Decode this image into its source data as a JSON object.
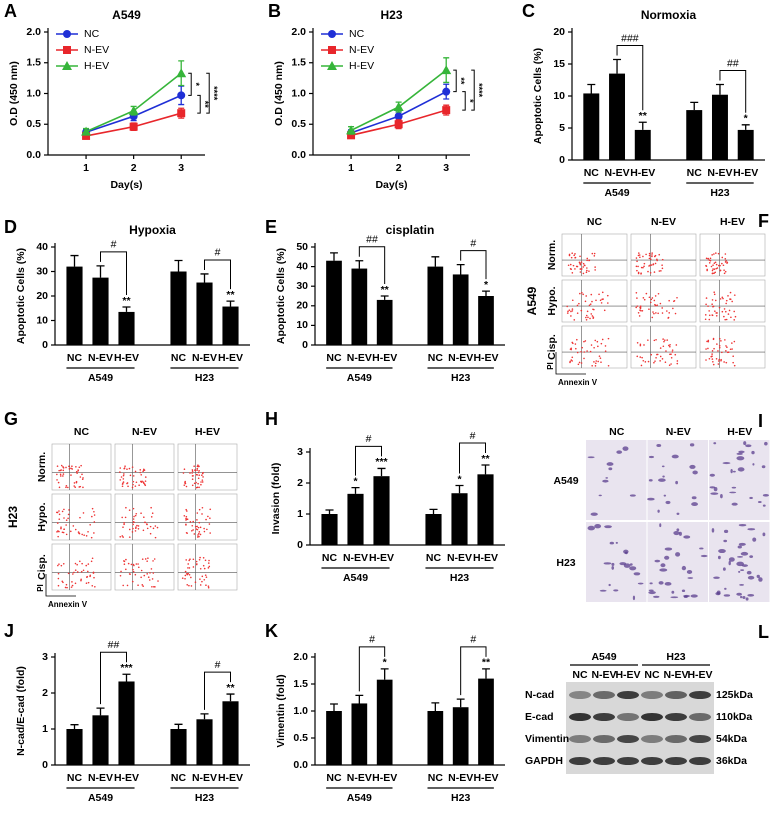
{
  "chart_data": [
    {
      "type": "line",
      "panel": "A",
      "title": "A549",
      "x_label": "Day(s)",
      "y_label": "O.D (450 nm)",
      "x": [
        1,
        2,
        3
      ],
      "xlim": [
        0.2,
        3.5
      ],
      "xticks": [
        1,
        2,
        3
      ],
      "ylim": [
        0,
        2
      ],
      "yticks": [
        {
          "value": 0,
          "label": "0.0"
        },
        0.5,
        {
          "value": 1,
          "label": "1.0"
        },
        1.5,
        {
          "value": 2,
          "label": "2.0"
        }
      ],
      "series": [
        {
          "name": "NC",
          "color": "#1f2fd6",
          "values": [
            0.37,
            0.63,
            0.97
          ],
          "errors": [
            0.05,
            0.07,
            0.15
          ]
        },
        {
          "name": "N-EV",
          "color": "#e8262b",
          "values": [
            0.31,
            0.46,
            0.68
          ],
          "errors": [
            0.04,
            0.06,
            0.08
          ]
        },
        {
          "name": "H-EV",
          "color": "#36b53a",
          "values": [
            0.38,
            0.72,
            1.33
          ],
          "errors": [
            0.05,
            0.07,
            0.2
          ]
        }
      ],
      "comparison_labels": [
        "*",
        "**",
        "****"
      ]
    },
    {
      "type": "line",
      "panel": "B",
      "title": "H23",
      "x_label": "Day(s)",
      "y_label": "O.D (450 nm)",
      "x": [
        1,
        2,
        3
      ],
      "xlim": [
        0.2,
        3.5
      ],
      "xticks": [
        1,
        2,
        3
      ],
      "ylim": [
        0,
        2
      ],
      "yticks": [
        {
          "value": 0,
          "label": "0.0"
        },
        0.5,
        {
          "value": 1,
          "label": "1.0"
        },
        1.5,
        {
          "value": 2,
          "label": "2.0"
        }
      ],
      "series": [
        {
          "name": "NC",
          "color": "#1f2fd6",
          "values": [
            0.36,
            0.63,
            1.03
          ],
          "errors": [
            0.05,
            0.07,
            0.12
          ]
        },
        {
          "name": "N-EV",
          "color": "#e8262b",
          "values": [
            0.32,
            0.5,
            0.73
          ],
          "errors": [
            0.04,
            0.07,
            0.08
          ]
        },
        {
          "name": "H-EV",
          "color": "#36b53a",
          "values": [
            0.4,
            0.78,
            1.38
          ],
          "errors": [
            0.06,
            0.08,
            0.2
          ]
        }
      ],
      "comparison_labels": [
        "**",
        "*",
        "****"
      ]
    },
    {
      "type": "bar",
      "panel": "C",
      "title": "Normoxia",
      "y_label": "Apoptotic Cells (%)",
      "color": "#000000",
      "categories": [
        "NC",
        "N-EV",
        "H-EV",
        "NC",
        "N-EV",
        "H-EV"
      ],
      "groups": [
        "A549",
        "H23"
      ],
      "values": [
        10.4,
        13.5,
        4.7,
        7.8,
        10.2,
        4.7
      ],
      "errors": [
        1.4,
        2.2,
        1.2,
        1.2,
        1.6,
        0.8
      ],
      "star_labels": [
        null,
        null,
        "**",
        null,
        null,
        "*"
      ],
      "bracket_labels": [
        "###",
        "##"
      ],
      "ylim": [
        0,
        20
      ],
      "yticks": [
        0,
        5,
        10,
        15,
        20
      ]
    },
    {
      "type": "bar",
      "panel": "D",
      "title": "Hypoxia",
      "y_label": "Apoptotic Cells (%)",
      "color": "#000000",
      "categories": [
        "NC",
        "N-EV",
        "H-EV",
        "NC",
        "N-EV",
        "H-EV"
      ],
      "groups": [
        "A549",
        "H23"
      ],
      "values": [
        32,
        27.5,
        13.5,
        30,
        25.5,
        15.7
      ],
      "errors": [
        4.5,
        4.8,
        2,
        4.5,
        3.5,
        2.2
      ],
      "star_labels": [
        null,
        null,
        "**",
        null,
        null,
        "**"
      ],
      "bracket_labels": [
        "#",
        "#"
      ],
      "ylim": [
        0,
        40
      ],
      "yticks": [
        0,
        10,
        20,
        30,
        40
      ]
    },
    {
      "type": "bar",
      "panel": "E",
      "title": "cisplatin",
      "y_label": "Apoptotic Cells (%)",
      "color": "#000000",
      "categories": [
        "NC",
        "N-EV",
        "H-EV",
        "NC",
        "N-EV",
        "H-EV"
      ],
      "groups": [
        "A549",
        "H23"
      ],
      "values": [
        43,
        39,
        23,
        40,
        36,
        25
      ],
      "errors": [
        4,
        4,
        2,
        5,
        5,
        2.5
      ],
      "star_labels": [
        null,
        null,
        "**",
        null,
        null,
        "*"
      ],
      "bracket_labels": [
        "##",
        "#"
      ],
      "ylim": [
        0,
        50
      ],
      "yticks": [
        0,
        10,
        20,
        30,
        40,
        50
      ]
    },
    {
      "type": "bar",
      "panel": "H",
      "y_label": "Invasion (fold)",
      "color": "#000000",
      "categories": [
        "NC",
        "N-EV",
        "H-EV",
        "NC",
        "N-EV",
        "H-EV"
      ],
      "groups": [
        "A549",
        "H23"
      ],
      "values": [
        1,
        1.65,
        2.22,
        1,
        1.67,
        2.28
      ],
      "errors": [
        0.13,
        0.2,
        0.25,
        0.15,
        0.25,
        0.3
      ],
      "star_labels": [
        null,
        "*",
        "***",
        null,
        "*",
        "**"
      ],
      "bracket_labels": [
        "#",
        "#"
      ],
      "ylim": [
        0,
        3
      ],
      "yticks": [
        0,
        1,
        2,
        3
      ]
    },
    {
      "type": "bar",
      "panel": "J",
      "y_label": "N-cad/E-cad (fold)",
      "color": "#000000",
      "categories": [
        "NC",
        "N-EV",
        "H-EV",
        "NC",
        "N-EV",
        "H-EV"
      ],
      "groups": [
        "A549",
        "H23"
      ],
      "values": [
        1,
        1.38,
        2.32,
        1,
        1.27,
        1.77
      ],
      "errors": [
        0.12,
        0.2,
        0.2,
        0.13,
        0.15,
        0.2
      ],
      "star_labels": [
        null,
        null,
        "***",
        null,
        null,
        "**"
      ],
      "bracket_labels": [
        "##",
        "#"
      ],
      "ylim": [
        0,
        3
      ],
      "yticks": [
        0,
        1,
        2,
        3
      ]
    },
    {
      "type": "bar",
      "panel": "K",
      "y_label": "Vimentin (fold)",
      "color": "#000000",
      "categories": [
        "NC",
        "N-EV",
        "H-EV",
        "NC",
        "N-EV",
        "H-EV"
      ],
      "groups": [
        "A549",
        "H23"
      ],
      "values": [
        1,
        1.14,
        1.58,
        1,
        1.07,
        1.6
      ],
      "errors": [
        0.13,
        0.15,
        0.2,
        0.15,
        0.15,
        0.18
      ],
      "star_labels": [
        null,
        null,
        "*",
        null,
        null,
        "**"
      ],
      "bracket_labels": [
        "#",
        "#"
      ],
      "ylim": [
        0,
        2
      ],
      "yticks": [
        {
          "value": 0,
          "label": "0.0"
        },
        0.5,
        {
          "value": 1,
          "label": "1.0"
        },
        1.5,
        {
          "value": 2,
          "label": "2.0"
        }
      ]
    }
  ],
  "flow_panels": [
    {
      "panel": "F",
      "cell_line": "A549",
      "columns": [
        "NC",
        "N-EV",
        "H-EV"
      ],
      "rows": [
        "Norm.",
        "Hypo.",
        "Cisp."
      ],
      "x_label": "Annexin V",
      "y_label": "PI"
    },
    {
      "panel": "G",
      "cell_line": "H23",
      "columns": [
        "NC",
        "N-EV",
        "H-EV"
      ],
      "rows": [
        "Norm.",
        "Hypo.",
        "Cisp."
      ],
      "x_label": "Annexin V",
      "y_label": "PI"
    }
  ],
  "micrographs": {
    "panel": "I",
    "columns": [
      "NC",
      "N-EV",
      "H-EV"
    ],
    "rows": [
      "A549",
      "H23"
    ]
  },
  "western_blot": {
    "panel": "L",
    "groups": [
      "A549",
      "H23"
    ],
    "lanes": [
      "NC",
      "N-EV",
      "H-EV",
      "NC",
      "N-EV",
      "H-EV"
    ],
    "proteins": [
      "N-cad",
      "E-cad",
      "Vimentin",
      "GAPDH"
    ],
    "sizes": [
      "125kDa",
      "110kDa",
      "54kDa",
      "36kDa"
    ]
  }
}
